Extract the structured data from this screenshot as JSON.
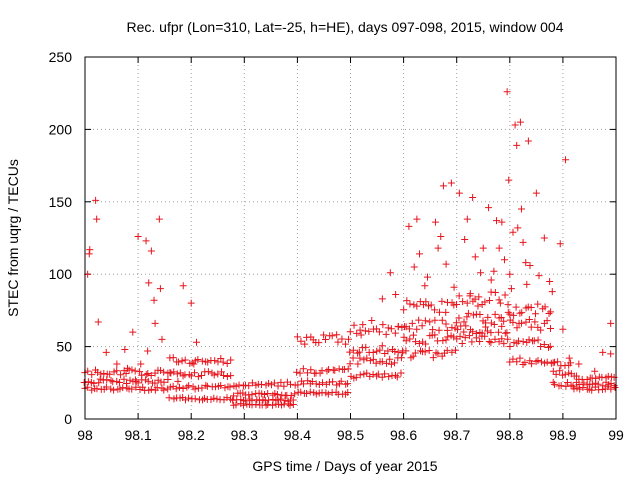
{
  "chart_data": {
    "type": "scatter",
    "title": "Rec. ufpr (Lon=310, Lat=-25, h=HE), days 097-098, 2015, window 004",
    "xlabel": "GPS time / Days of year 2015",
    "ylabel": "STEC from uqrg / TECUs",
    "xlim": [
      98,
      99
    ],
    "ylim": [
      0,
      250
    ],
    "xticks": [
      98,
      98.1,
      98.2,
      98.3,
      98.4,
      98.5,
      98.6,
      98.7,
      98.8,
      98.9,
      99
    ],
    "xtick_labels": [
      "98",
      "98.1",
      "98.2",
      "98.3",
      "98.4",
      "98.5",
      "98.6",
      "98.7",
      "98.8",
      "98.9",
      "99"
    ],
    "yticks": [
      0,
      50,
      100,
      150,
      200,
      250
    ],
    "ytick_labels": [
      "0",
      "50",
      "100",
      "150",
      "200",
      "250"
    ],
    "grid": true,
    "marker": "+",
    "series": [
      {
        "name": "STEC",
        "color": "#e8141c",
        "points": [
          [
            98.005,
            100
          ],
          [
            98.008,
            114
          ],
          [
            98.009,
            117
          ],
          [
            98.02,
            151
          ],
          [
            98.022,
            138
          ],
          [
            98.025,
            67
          ],
          [
            98.04,
            46
          ],
          [
            98.06,
            38
          ],
          [
            98.075,
            48
          ],
          [
            98.08,
            35
          ],
          [
            98.09,
            60
          ],
          [
            98.095,
            27
          ],
          [
            98.1,
            126
          ],
          [
            98.105,
            38
          ],
          [
            98.115,
            123
          ],
          [
            98.118,
            47
          ],
          [
            98.12,
            94
          ],
          [
            98.125,
            116
          ],
          [
            98.13,
            82
          ],
          [
            98.132,
            66
          ],
          [
            98.14,
            138
          ],
          [
            98.142,
            90
          ],
          [
            98.145,
            55
          ],
          [
            98.16,
            32
          ],
          [
            98.175,
            26
          ],
          [
            98.185,
            92
          ],
          [
            98.2,
            80
          ],
          [
            98.205,
            38
          ],
          [
            98.21,
            53
          ],
          [
            98.52,
            58
          ],
          [
            98.54,
            68
          ],
          [
            98.56,
            83
          ],
          [
            98.575,
            101
          ],
          [
            98.585,
            86
          ],
          [
            98.59,
            64
          ],
          [
            98.61,
            133
          ],
          [
            98.62,
            105
          ],
          [
            98.625,
            138
          ],
          [
            98.63,
            114
          ],
          [
            98.64,
            92
          ],
          [
            98.645,
            98
          ],
          [
            98.66,
            136
          ],
          [
            98.665,
            118
          ],
          [
            98.67,
            126
          ],
          [
            98.675,
            161
          ],
          [
            98.68,
            107
          ],
          [
            98.69,
            163
          ],
          [
            98.695,
            91
          ],
          [
            98.705,
            156
          ],
          [
            98.715,
            124
          ],
          [
            98.72,
            138
          ],
          [
            98.725,
            85
          ],
          [
            98.73,
            153
          ],
          [
            98.735,
            112
          ],
          [
            98.74,
            78
          ],
          [
            98.745,
            101
          ],
          [
            98.75,
            118
          ],
          [
            98.76,
            146
          ],
          [
            98.765,
            96
          ],
          [
            98.77,
            102
          ],
          [
            98.775,
            137
          ],
          [
            98.78,
            118
          ],
          [
            98.785,
            136
          ],
          [
            98.79,
            110
          ],
          [
            98.795,
            226
          ],
          [
            98.798,
            165
          ],
          [
            98.8,
            100
          ],
          [
            98.803,
            90
          ],
          [
            98.806,
            129
          ],
          [
            98.81,
            203
          ],
          [
            98.813,
            189
          ],
          [
            98.815,
            132
          ],
          [
            98.82,
            205
          ],
          [
            98.822,
            145
          ],
          [
            98.825,
            122
          ],
          [
            98.83,
            108
          ],
          [
            98.832,
            93
          ],
          [
            98.835,
            192
          ],
          [
            98.838,
            106
          ],
          [
            98.85,
            156
          ],
          [
            98.855,
            99
          ],
          [
            98.865,
            125
          ],
          [
            98.875,
            95
          ],
          [
            98.88,
            88
          ],
          [
            98.895,
            121
          ],
          [
            98.9,
            62
          ],
          [
            98.905,
            179
          ],
          [
            98.912,
            42
          ],
          [
            98.93,
            38
          ],
          [
            98.96,
            33
          ],
          [
            98.975,
            46
          ],
          [
            98.99,
            66
          ],
          [
            98.99,
            45
          ]
        ],
        "clusters": [
          {
            "x_from": 98.0,
            "x_to": 98.16,
            "y_levels": [
              21,
              26,
              32
            ]
          },
          {
            "x_from": 98.16,
            "x_to": 98.28,
            "y_levels": [
              14,
              22,
              31,
              40
            ]
          },
          {
            "x_from": 98.28,
            "x_to": 98.4,
            "y_levels": [
              10,
              13,
              17,
              24
            ]
          },
          {
            "x_from": 98.4,
            "x_to": 98.5,
            "y_levels": [
              18,
              25,
              33,
              55
            ]
          },
          {
            "x_from": 98.5,
            "x_to": 98.6,
            "y_levels": [
              30,
              40,
              48,
              62
            ]
          },
          {
            "x_from": 98.6,
            "x_to": 98.7,
            "y_levels": [
              45,
              55,
              65,
              78
            ]
          },
          {
            "x_from": 98.7,
            "x_to": 98.8,
            "y_levels": [
              55,
              62,
              70,
              84
            ]
          },
          {
            "x_from": 98.8,
            "x_to": 98.88,
            "y_levels": [
              40,
              52,
              65,
              76
            ]
          },
          {
            "x_from": 98.88,
            "x_to": 98.92,
            "y_levels": [
              24,
              32,
              38
            ]
          },
          {
            "x_from": 98.92,
            "x_to": 99.0,
            "y_levels": [
              21,
              24,
              29
            ]
          }
        ]
      }
    ]
  }
}
